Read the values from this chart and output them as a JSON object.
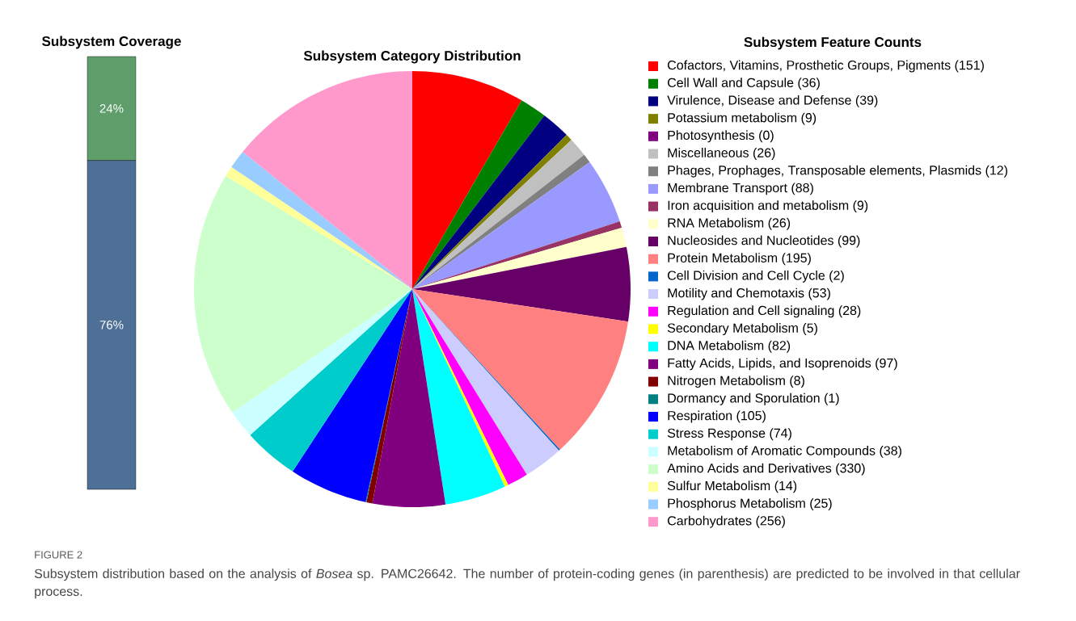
{
  "chart_data": [
    {
      "type": "bar",
      "title": "Subsystem Coverage",
      "stacked": true,
      "categories": [
        null
      ],
      "series": [
        {
          "color": "#4e6f96",
          "values": [
            76
          ],
          "value_labels": [
            "76%"
          ]
        },
        {
          "color": "#5f9e6a",
          "values": [
            24
          ],
          "value_labels": [
            "24%"
          ]
        }
      ]
    },
    {
      "type": "pie",
      "title": "Subsystem Category Distribution",
      "legend_title": "Subsystem Feature Counts",
      "legend": "right",
      "categories": [
        "Cofactors, Vitamins, Prosthetic Groups, Pigments (151)",
        "Cell Wall and Capsule (36)",
        "Virulence, Disease and Defense (39)",
        "Potassium metabolism (9)",
        "Photosynthesis (0)",
        "Miscellaneous (26)",
        "Phages, Prophages, Transposable elements, Plasmids (12)",
        "Membrane Transport (88)",
        "Iron acquisition and metabolism (9)",
        "RNA Metabolism (26)",
        "Nucleosides and Nucleotides (99)",
        "Protein Metabolism (195)",
        "Cell Division and Cell Cycle (2)",
        "Motility and Chemotaxis (53)",
        "Regulation and Cell signaling (28)",
        "Secondary Metabolism (5)",
        "DNA Metabolism (82)",
        "Fatty Acids, Lipids, and Isoprenoids (97)",
        "Nitrogen Metabolism (8)",
        "Dormancy and Sporulation (1)",
        "Respiration (105)",
        "Stress Response (74)",
        "Metabolism of Aromatic Compounds (38)",
        "Amino Acids and Derivatives (330)",
        "Sulfur Metabolism (14)",
        "Phosphorus Metabolism (25)",
        "Carbohydrates (256)"
      ],
      "values": [
        151,
        36,
        39,
        9,
        0,
        26,
        12,
        88,
        9,
        26,
        99,
        195,
        2,
        53,
        28,
        5,
        82,
        97,
        8,
        1,
        105,
        74,
        38,
        330,
        14,
        25,
        256
      ],
      "colors": [
        "#ff0000",
        "#008000",
        "#000080",
        "#808000",
        "#800080",
        "#c0c0c0",
        "#808080",
        "#9999ff",
        "#993366",
        "#ffffcc",
        "#660066",
        "#ff8080",
        "#0066cc",
        "#ccccff",
        "#ff00ff",
        "#ffff00",
        "#00ffff",
        "#800080",
        "#800000",
        "#008080",
        "#0000ff",
        "#00cccc",
        "#ccffff",
        "#ccffcc",
        "#ffff99",
        "#99ccff",
        "#ff99cc"
      ],
      "annotations": [
        "FIGURE 2",
        "Subsystem distribution based on the analysis of *Bosea* sp. PAMC26642. The number of protein-coding genes (in parenthesis) are predicted to be involved in that cellular process."
      ]
    }
  ]
}
